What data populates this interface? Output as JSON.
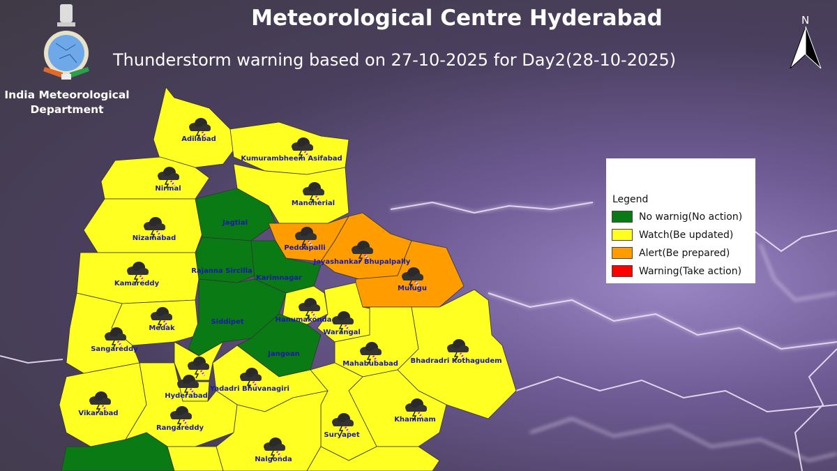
{
  "header": {
    "title": "Meteorological Centre Hyderabad",
    "subtitle": "Thunderstorm warning based on 27-10-2025 for Day2(28-10-2025)",
    "organization_line1": "India Meteorological",
    "organization_line2": "Department",
    "north_label": "N"
  },
  "legend": {
    "title": "Legend",
    "items": [
      {
        "level": "green",
        "label": "No warnig(No action)",
        "color": "#0a7a14"
      },
      {
        "level": "yellow",
        "label": "Watch(Be updated)",
        "color": "#ffff22"
      },
      {
        "level": "orange",
        "label": "Alert(Be prepared)",
        "color": "#ff9c00"
      },
      {
        "level": "red",
        "label": "Warning(Take action)",
        "color": "#ff0000"
      }
    ]
  },
  "districts": [
    {
      "name": "Adilabad",
      "level": "yellow",
      "thunderstorm": true
    },
    {
      "name": "Kumurambheem Asifabad",
      "level": "yellow",
      "thunderstorm": true
    },
    {
      "name": "Nirmal",
      "level": "yellow",
      "thunderstorm": true
    },
    {
      "name": "Mancherial",
      "level": "yellow",
      "thunderstorm": true
    },
    {
      "name": "Nizamabad",
      "level": "yellow",
      "thunderstorm": true
    },
    {
      "name": "Jagtial",
      "level": "green",
      "thunderstorm": false
    },
    {
      "name": "Peddapalli",
      "level": "orange",
      "thunderstorm": true
    },
    {
      "name": "Jayashankar Bhupalpally",
      "level": "orange",
      "thunderstorm": true
    },
    {
      "name": "Mulugu",
      "level": "orange",
      "thunderstorm": true
    },
    {
      "name": "Rajanna Sircilla",
      "level": "green",
      "thunderstorm": false
    },
    {
      "name": "Karimnagar",
      "level": "green",
      "thunderstorm": false
    },
    {
      "name": "Kamareddy",
      "level": "yellow",
      "thunderstorm": true
    },
    {
      "name": "Medak",
      "level": "yellow",
      "thunderstorm": true
    },
    {
      "name": "Siddipet",
      "level": "green",
      "thunderstorm": false
    },
    {
      "name": "Hanumakonda",
      "level": "yellow",
      "thunderstorm": true
    },
    {
      "name": "Warangal",
      "level": "yellow",
      "thunderstorm": true
    },
    {
      "name": "Sangareddy",
      "level": "yellow",
      "thunderstorm": true
    },
    {
      "name": "Jangoan",
      "level": "green",
      "thunderstorm": false
    },
    {
      "name": "Mahabubabad",
      "level": "yellow",
      "thunderstorm": true
    },
    {
      "name": "Bhadradri Kothagudem",
      "level": "yellow",
      "thunderstorm": true
    },
    {
      "name": "",
      "level": "yellow",
      "thunderstorm": true
    },
    {
      "name": "Hyderabad",
      "level": "yellow",
      "thunderstorm": true
    },
    {
      "name": "Yadadri Bhuvanagiri",
      "level": "yellow",
      "thunderstorm": true
    },
    {
      "name": "Vikarabad",
      "level": "yellow",
      "thunderstorm": true
    },
    {
      "name": "Rangareddy",
      "level": "yellow",
      "thunderstorm": true
    },
    {
      "name": "Khammam",
      "level": "yellow",
      "thunderstorm": true
    },
    {
      "name": "Suryapet",
      "level": "yellow",
      "thunderstorm": true
    },
    {
      "name": "Nalgonda",
      "level": "yellow",
      "thunderstorm": true
    },
    {
      "name": "",
      "level": "green",
      "thunderstorm": false
    },
    {
      "name": "",
      "level": "yellow",
      "thunderstorm": false
    },
    {
      "name": "",
      "level": "yellow",
      "thunderstorm": false
    }
  ]
}
